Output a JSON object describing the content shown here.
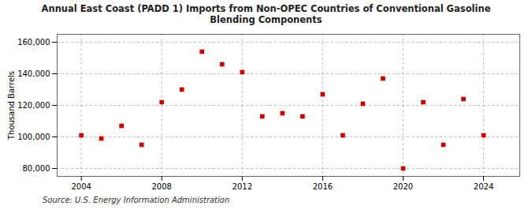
{
  "chart_data": {
    "type": "scatter",
    "title": "Annual East Coast (PADD 1) Imports from Non-OPEC Countries of Conventional Gasoline\nBlending Components",
    "ylabel": "Thousand Barrels",
    "source": "Source: U.S. Energy Information Administration",
    "x": [
      2004,
      2005,
      2006,
      2007,
      2008,
      2009,
      2010,
      2011,
      2012,
      2013,
      2014,
      2015,
      2016,
      2017,
      2018,
      2019,
      2020,
      2021,
      2022,
      2023,
      2024
    ],
    "values": [
      101000,
      99000,
      107000,
      95000,
      122000,
      130000,
      154000,
      146000,
      141000,
      113000,
      115000,
      113000,
      127000,
      101000,
      121000,
      137000,
      80000,
      122000,
      95000,
      124000,
      101000
    ],
    "color": "#cc0000",
    "marker": "square",
    "xlim": [
      2002.8,
      2025.8
    ],
    "xticks": [
      2004,
      2008,
      2012,
      2016,
      2020,
      2024
    ],
    "ylim": [
      75000,
      165000
    ],
    "yticks": [
      {
        "value": 80000,
        "label": "80,000"
      },
      {
        "value": 100000,
        "label": "100,000"
      },
      {
        "value": 120000,
        "label": "120,000"
      },
      {
        "value": 140000,
        "label": "140,000"
      },
      {
        "value": 160000,
        "label": "160,000"
      }
    ],
    "grid": true
  }
}
